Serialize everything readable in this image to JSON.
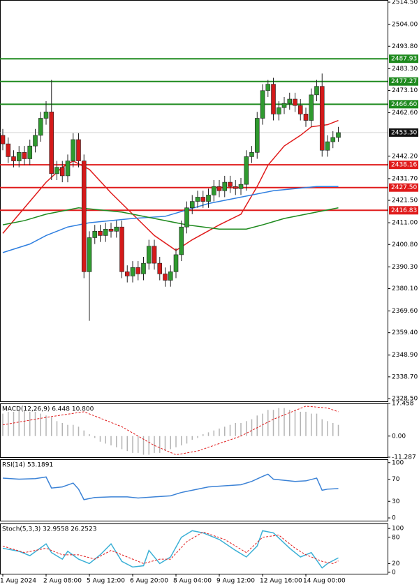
{
  "chart_data": [
    {
      "type": "candlestick",
      "categories": [
        "1 Aug 2024",
        null,
        null,
        null,
        null,
        null,
        null,
        null,
        "2 Aug 08:00",
        null,
        null,
        null,
        null,
        null,
        null,
        null,
        "5 Aug 12:00",
        null,
        null,
        null,
        null,
        null,
        null,
        null,
        "6 Aug 20:00",
        null,
        null,
        null,
        null,
        null,
        null,
        null,
        "8 Aug 04:00",
        null,
        null,
        null,
        null,
        null,
        null,
        null,
        "9 Aug 12:00",
        null,
        null,
        null,
        null,
        null,
        null,
        null,
        "12 Aug 16:00",
        null,
        null,
        null,
        null,
        null,
        null,
        null,
        "14 Aug 00:00",
        null,
        null,
        null,
        null,
        null,
        null
      ],
      "open": [
        2452,
        2448,
        2442,
        2440,
        2444,
        2441,
        2447,
        2452,
        2460,
        2463,
        2434,
        2437,
        2433,
        2440,
        2450,
        2440,
        2388,
        2404,
        2407,
        2405,
        2408,
        2407,
        2409,
        2388,
        2386,
        2390,
        2387,
        2392,
        2400,
        2392,
        2387,
        2384,
        2388,
        2396,
        2409,
        2418,
        2421,
        2423,
        2421,
        2424,
        2428,
        2426,
        2430,
        2428,
        2427,
        2429,
        2442,
        2444,
        2460,
        2473,
        2476,
        2462,
        2465,
        2467,
        2469,
        2466,
        2462,
        2459,
        2471,
        2475,
        2445,
        2449,
        2451
      ],
      "high": [
        2455,
        2451,
        2445,
        2447,
        2447,
        2450,
        2455,
        2463,
        2468,
        2478,
        2440,
        2440,
        2443,
        2453,
        2453,
        2443,
        2407,
        2410,
        2410,
        2411,
        2411,
        2412,
        2412,
        2391,
        2393,
        2393,
        2395,
        2403,
        2403,
        2395,
        2390,
        2391,
        2399,
        2412,
        2421,
        2424,
        2426,
        2426,
        2427,
        2431,
        2431,
        2433,
        2433,
        2431,
        2432,
        2445,
        2447,
        2463,
        2476,
        2478,
        2479,
        2468,
        2470,
        2472,
        2472,
        2469,
        2465,
        2474,
        2478,
        2481,
        2452,
        2454,
        2456
      ],
      "low": [
        2445,
        2439,
        2437,
        2437,
        2438,
        2438,
        2444,
        2449,
        2457,
        2431,
        2431,
        2430,
        2430,
        2437,
        2437,
        2385,
        2365,
        2401,
        2402,
        2402,
        2404,
        2404,
        2385,
        2383,
        2383,
        2384,
        2384,
        2389,
        2389,
        2384,
        2381,
        2381,
        2385,
        2393,
        2406,
        2415,
        2418,
        2418,
        2418,
        2421,
        2423,
        2423,
        2425,
        2424,
        2424,
        2426,
        2439,
        2441,
        2457,
        2470,
        2459,
        2459,
        2462,
        2464,
        2463,
        2459,
        2456,
        2456,
        2468,
        2442,
        2442,
        2446,
        2449
      ],
      "close": [
        2448,
        2442,
        2440,
        2444,
        2441,
        2447,
        2452,
        2460,
        2463,
        2434,
        2437,
        2433,
        2440,
        2450,
        2440,
        2388,
        2404,
        2407,
        2405,
        2408,
        2407,
        2409,
        2388,
        2386,
        2390,
        2387,
        2392,
        2400,
        2392,
        2387,
        2384,
        2388,
        2396,
        2409,
        2418,
        2421,
        2423,
        2421,
        2424,
        2428,
        2426,
        2430,
        2428,
        2427,
        2429,
        2442,
        2444,
        2460,
        2473,
        2476,
        2462,
        2465,
        2467,
        2469,
        2466,
        2462,
        2459,
        2471,
        2475,
        2445,
        2449,
        2451,
        2453.3
      ],
      "up_color": "#2f9a2f",
      "down_color": "#d41a1a",
      "ylim": [
        2327.2,
        2515.5
      ],
      "yticks": [
        {
          "value": 2514.5,
          "label": "2514.50"
        },
        {
          "value": 2504,
          "label": "2504.00"
        },
        {
          "value": 2493.8,
          "label": "2493.80"
        },
        {
          "value": 2483.3,
          "label": "2483.30"
        },
        {
          "value": 2473.1,
          "label": "2473.10"
        },
        {
          "value": 2462.6,
          "label": "2462.60"
        },
        {
          "value": 2442.2,
          "label": "2442.20"
        },
        {
          "value": 2431.7,
          "label": "2431.70"
        },
        {
          "value": 2421.5,
          "label": "2421.50"
        },
        {
          "value": 2411,
          "label": "2411.00"
        },
        {
          "value": 2400.8,
          "label": "2400.80"
        },
        {
          "value": 2390.3,
          "label": "2390.30"
        },
        {
          "value": 2380.1,
          "label": "2380.10"
        },
        {
          "value": 2369.6,
          "label": "2369.60"
        },
        {
          "value": 2359.4,
          "label": "2359.40"
        },
        {
          "value": 2348.9,
          "label": "2348.90"
        },
        {
          "value": 2338.7,
          "label": "2338.70"
        },
        {
          "value": 2328.5,
          "label": "2328.50"
        }
      ],
      "levels": [
        {
          "value": 2487.93,
          "label": "2487.93",
          "color": "#1e8a1e"
        },
        {
          "value": 2477.27,
          "label": "2477.27",
          "color": "#1e8a1e"
        },
        {
          "value": 2466.6,
          "label": "2466.60",
          "color": "#1e8a1e"
        },
        {
          "value": 2438.16,
          "label": "2438.16",
          "color": "#e01b1b"
        },
        {
          "value": 2427.5,
          "label": "2427.50",
          "color": "#e01b1b"
        },
        {
          "value": 2416.83,
          "label": "2416.83",
          "color": "#e01b1b"
        }
      ],
      "last_price": {
        "value": 2453.3,
        "label": "2453.30",
        "color": "#111111"
      },
      "moving_averages": [
        {
          "color": "#e01b1b",
          "x": [
            0,
            4,
            8,
            11,
            13,
            16,
            20,
            24,
            28,
            32,
            35,
            40,
            44,
            47,
            49,
            52,
            55,
            57,
            60,
            62
          ],
          "values": [
            2406,
            2418,
            2430,
            2437,
            2440,
            2436,
            2425,
            2415,
            2405,
            2398,
            2403,
            2410,
            2415,
            2428,
            2438,
            2447,
            2452,
            2456,
            2457,
            2459
          ]
        },
        {
          "color": "#2f7fe0",
          "x": [
            0,
            5,
            8,
            12,
            16,
            24,
            30,
            34,
            38,
            42,
            46,
            50,
            54,
            58,
            62
          ],
          "values": [
            2397,
            2401,
            2405,
            2409,
            2411,
            2413,
            2414,
            2417,
            2420,
            2422,
            2424,
            2426,
            2427,
            2428,
            2428
          ]
        },
        {
          "color": "#1e8a1e",
          "x": [
            0,
            4,
            8,
            14,
            22,
            28,
            34,
            40,
            45,
            48,
            52,
            56,
            60,
            62
          ],
          "values": [
            2410,
            2412,
            2415,
            2418,
            2416,
            2413,
            2410,
            2408,
            2408,
            2410,
            2413,
            2415,
            2417,
            2418
          ]
        }
      ]
    },
    {
      "type": "macd",
      "title": "MACD(12,26,9) 6.448 10.800",
      "ylim": [
        -11.287,
        17.458
      ],
      "yticks": [
        17.458,
        {
          "value": 0,
          "label": "0.00"
        },
        -11.287
      ],
      "histogram": {
        "color": "#b4b4b4",
        "values": [
          12,
          13,
          13,
          14,
          14,
          13,
          13,
          12,
          11,
          10,
          8,
          7,
          6,
          6,
          5,
          3,
          1,
          -1,
          -3,
          -4,
          -5,
          -6,
          -7,
          -8,
          -9,
          -9,
          -10,
          -10,
          -9,
          -9,
          -8,
          -7,
          -6,
          -5,
          -4,
          -2,
          -1,
          1,
          2,
          3,
          4,
          5,
          6,
          7,
          7,
          8,
          9,
          11,
          12,
          14,
          14,
          15,
          15,
          14,
          14,
          13,
          13,
          12,
          12,
          9,
          8,
          7,
          6
        ]
      },
      "signal": {
        "color": "#e01b1b",
        "x": [
          0,
          8,
          15,
          22,
          28,
          32,
          36,
          44,
          50,
          56,
          60,
          62
        ],
        "values": [
          6,
          10,
          13,
          5,
          -5,
          -10,
          -8,
          0,
          9,
          16,
          15,
          13
        ]
      }
    },
    {
      "type": "line",
      "title": "RSI(14) 53.1891",
      "ylim": [
        -5,
        106
      ],
      "yticks": [
        100,
        70,
        30,
        0
      ],
      "series": [
        {
          "color": "#3b82d6",
          "dash": false,
          "x": [
            0,
            3,
            6,
            8,
            9,
            11,
            13,
            14,
            15,
            17,
            20,
            23,
            25,
            28,
            31,
            33,
            35,
            38,
            41,
            44,
            46,
            48,
            49,
            50,
            52,
            54,
            56,
            58,
            59,
            60,
            62
          ],
          "values": [
            72,
            70,
            71,
            74,
            54,
            56,
            63,
            52,
            33,
            37,
            38,
            38,
            36,
            38,
            40,
            46,
            50,
            56,
            58,
            60,
            66,
            75,
            79,
            70,
            68,
            66,
            67,
            72,
            50,
            52,
            53
          ]
        }
      ]
    },
    {
      "type": "line",
      "title": "Stoch(5,3,3) 32.9558 26.2523",
      "ylim": [
        -3.3,
        111.5
      ],
      "yticks": [
        100,
        80,
        20,
        0
      ],
      "series": [
        {
          "color": "#3bb0d6",
          "dash": false,
          "x": [
            0,
            3,
            5,
            8,
            9,
            11,
            12,
            14,
            16,
            18,
            20,
            22,
            24,
            26,
            27,
            29,
            31,
            33,
            35,
            37,
            40,
            43,
            45,
            47,
            48,
            50,
            53,
            55,
            57,
            59,
            60,
            62
          ],
          "values": [
            55,
            48,
            38,
            65,
            45,
            30,
            48,
            30,
            20,
            40,
            65,
            25,
            12,
            15,
            50,
            20,
            35,
            80,
            95,
            90,
            75,
            50,
            35,
            60,
            95,
            90,
            55,
            35,
            45,
            10,
            20,
            33
          ]
        },
        {
          "color": "#e01b1b",
          "dash": true,
          "x": [
            0,
            4,
            8,
            11,
            14,
            17,
            20,
            23,
            26,
            29,
            31,
            34,
            37,
            41,
            45,
            48,
            51,
            54,
            56,
            59,
            61,
            62
          ],
          "values": [
            60,
            45,
            55,
            40,
            40,
            30,
            50,
            35,
            20,
            30,
            30,
            70,
            92,
            75,
            45,
            80,
            85,
            55,
            40,
            25,
            20,
            26
          ]
        }
      ]
    }
  ]
}
